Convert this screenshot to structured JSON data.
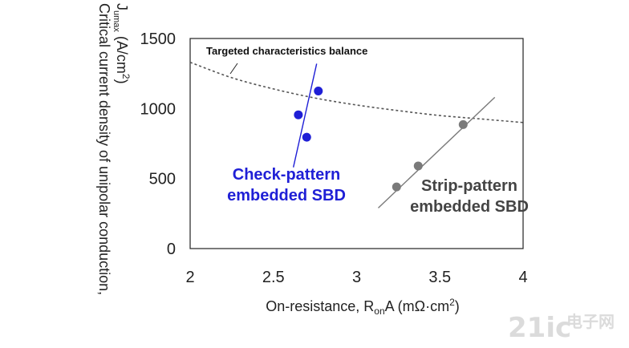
{
  "chart_data": {
    "type": "scatter",
    "xlabel": {
      "main": "On-resistance, R",
      "sub": "on",
      "tail": "A (mΩ·cm",
      "sup": "2",
      "close": ")"
    },
    "ylabel": {
      "line1": "Critical current density of unipolar conduction,",
      "main": "J",
      "sub": "umax",
      "tail": " (A/cm",
      "sup": "2",
      "close": ")"
    },
    "xlim": [
      2,
      4
    ],
    "ylim": [
      0,
      1500
    ],
    "x_ticks": [
      "2",
      "2.5",
      "3",
      "3.5",
      "4"
    ],
    "y_ticks": [
      "0",
      "500",
      "1000",
      "1500"
    ],
    "grid": false,
    "series": [
      {
        "name": "Check-pattern embedded SBD",
        "color": "#1f1fd6",
        "points": [
          [
            2.65,
            955
          ],
          [
            2.7,
            795
          ],
          [
            2.77,
            1125
          ]
        ],
        "trend": [
          [
            2.62,
            580
          ],
          [
            2.76,
            1320
          ]
        ]
      },
      {
        "name": "Strip-pattern embedded SBD",
        "color": "#7a7a7a",
        "points": [
          [
            3.24,
            440
          ],
          [
            3.37,
            590
          ],
          [
            3.64,
            885
          ]
        ],
        "trend": [
          [
            3.13,
            290
          ],
          [
            3.83,
            1080
          ]
        ]
      }
    ],
    "balance_curve": {
      "label": "Targeted characteristics balance",
      "color": "#555555",
      "points": [
        [
          2,
          1330
        ],
        [
          2.25,
          1220
        ],
        [
          2.5,
          1140
        ],
        [
          2.75,
          1075
        ],
        [
          3,
          1025
        ],
        [
          3.25,
          985
        ],
        [
          3.5,
          950
        ],
        [
          3.75,
          925
        ],
        [
          4,
          900
        ]
      ]
    },
    "annotations": {
      "check_line1": "Check-pattern",
      "check_line2": "embedded SBD",
      "strip_line1": "Strip-pattern",
      "strip_line2": "embedded SBD"
    }
  },
  "watermark": {
    "part1": "21",
    "part2": "ic",
    "cn": "电子网"
  }
}
